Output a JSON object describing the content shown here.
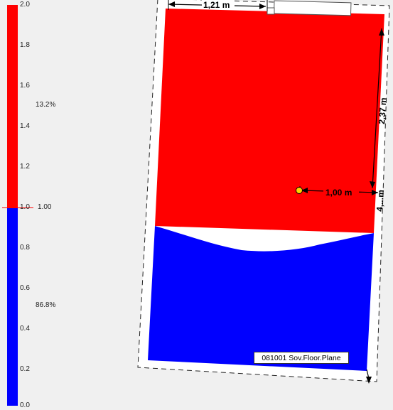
{
  "legend": {
    "ticks": [
      "2.0",
      "1.8",
      "1.6",
      "1.4",
      "1.2",
      "1.0",
      "0.8",
      "0.6",
      "0.4",
      "0.2",
      "0.0"
    ],
    "threshold_label": "1.00",
    "above_percent": "13.2%",
    "below_percent": "86.8%",
    "above_color": "#ff0000",
    "below_color": "#0000ff"
  },
  "plan": {
    "dim_top": "1,21 m",
    "dim_right": "2,37 m",
    "dim_horizontal": "1,00 m",
    "dim_right_lower": "4,...m",
    "plane_label": "081001 Sov.Floor.Plane",
    "sensor_icon": "sensor-point-icon"
  }
}
